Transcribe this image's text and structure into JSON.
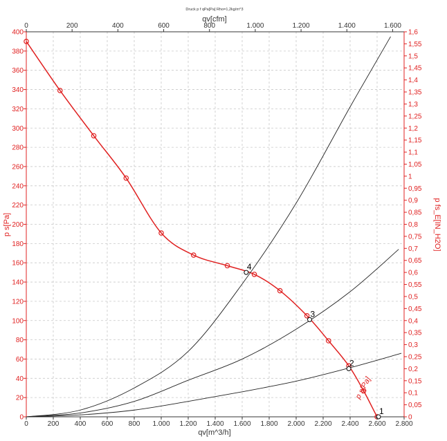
{
  "chart_data": {
    "type": "line",
    "title": "Druck p f qPa[Pa] Rho=1,2kg/m^3",
    "xlabel": "qv[m^3/h]",
    "x2label": "qv[cfm]",
    "ylabel": "p s[Pa]",
    "y2label": "p fs_E[IN_H2O]",
    "xlim": [
      0,
      2800
    ],
    "ylim": [
      0,
      400
    ],
    "x2lim": [
      0,
      1650
    ],
    "y2lim": [
      0,
      1.6
    ],
    "grid": true,
    "x_ticks": [
      "0",
      "200",
      "400",
      "600",
      "800",
      "1.000",
      "1.200",
      "1.400",
      "1.600",
      "1.800",
      "2.000",
      "2.200",
      "2.400",
      "2.600",
      "2.800"
    ],
    "x2_ticks": [
      "0",
      "200",
      "400",
      "600",
      "800",
      "1.000",
      "1.200",
      "1.400",
      "1.600"
    ],
    "y_ticks": [
      "0",
      "20",
      "40",
      "60",
      "80",
      "100",
      "120",
      "140",
      "160",
      "180",
      "200",
      "220",
      "240",
      "260",
      "280",
      "300",
      "320",
      "340",
      "360",
      "380",
      "400"
    ],
    "y2_ticks": [
      "0",
      "0,05",
      "0,1",
      "0,15",
      "0,2",
      "0,25",
      "0,3",
      "0,35",
      "0,4",
      "0,45",
      "0,5",
      "0,55",
      "0,6",
      "0,65",
      "0,7",
      "0,75",
      "0,8",
      "0,85",
      "0,9",
      "0,95",
      "1",
      "1,05",
      "1,1",
      "1,15",
      "1,2",
      "1,25",
      "1,3",
      "1,35",
      "1,4",
      "1,45",
      "1,5",
      "1,55",
      "1,6"
    ],
    "series": [
      {
        "name": "p s",
        "label": "p s[Pa]",
        "color": "#e02020",
        "x": [
          0,
          250,
          500,
          740,
          1000,
          1240,
          1490,
          1690,
          1880,
          2080,
          2240,
          2390,
          2500,
          2600,
          2610
        ],
        "y": [
          390,
          339,
          292,
          248,
          191,
          168,
          157,
          148,
          131,
          105,
          79,
          53,
          27,
          0,
          0
        ],
        "markers": true
      },
      {
        "name": "system-curve-steep",
        "color": "#222222",
        "x": [
          0,
          400,
          800,
          1200,
          1600,
          2000,
          2400,
          2700
        ],
        "y": [
          0,
          7,
          30,
          68,
          138,
          222,
          322,
          395
        ],
        "markers": false
      },
      {
        "name": "system-curve-medium",
        "color": "#222222",
        "x": [
          0,
          400,
          800,
          1200,
          1600,
          2000,
          2400,
          2760
        ],
        "y": [
          0,
          4,
          16,
          38,
          60,
          91,
          130,
          174
        ],
        "markers": false
      },
      {
        "name": "system-curve-flat",
        "color": "#222222",
        "x": [
          0,
          400,
          800,
          1200,
          1600,
          2000,
          2400,
          2780
        ],
        "y": [
          0,
          2,
          7,
          16,
          26,
          37,
          51,
          66
        ],
        "markers": false
      }
    ],
    "operating_points": [
      {
        "label": "4",
        "x": 1630,
        "y": 150
      },
      {
        "label": "3",
        "x": 2100,
        "y": 101
      },
      {
        "label": "2",
        "x": 2390,
        "y": 50
      },
      {
        "label": "1",
        "x": 2610,
        "y": 0
      }
    ]
  }
}
